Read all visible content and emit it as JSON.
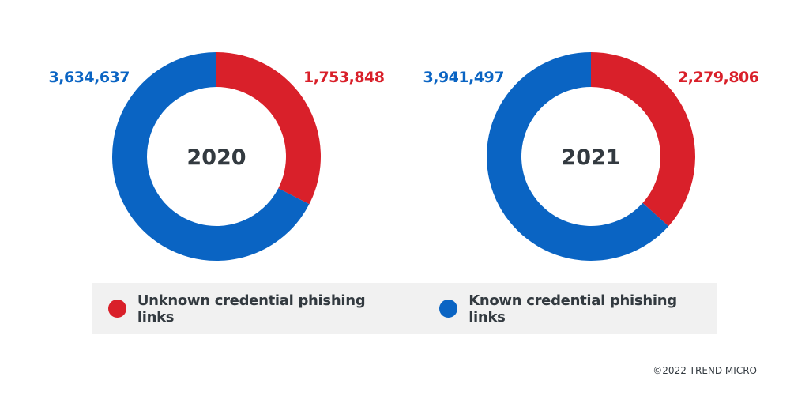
{
  "chart_data": [
    {
      "type": "pie",
      "donut": true,
      "center_label": "2020",
      "start": "top",
      "direction": "clockwise",
      "series": [
        {
          "name": "Unknown credential phishing links",
          "value": 1753848,
          "label": "1,753,848",
          "color": "#d9202a"
        },
        {
          "name": "Known credential phishing links",
          "value": 3634637,
          "label": "3,634,637",
          "color": "#0a64c3"
        }
      ]
    },
    {
      "type": "pie",
      "donut": true,
      "center_label": "2021",
      "start": "top",
      "direction": "clockwise",
      "series": [
        {
          "name": "Unknown credential phishing links",
          "value": 2279806,
          "label": "2,279,806",
          "color": "#d9202a"
        },
        {
          "name": "Known credential phishing links",
          "value": 3941497,
          "label": "3,941,497",
          "color": "#0a64c3"
        }
      ]
    }
  ],
  "legend": {
    "placement": "bottom",
    "items": [
      {
        "label": "Unknown credential phishing links",
        "color": "#d9202a"
      },
      {
        "label": "Known credential phishing links",
        "color": "#0a64c3"
      }
    ]
  },
  "footer": {
    "copyright": "©2022 TREND MICRO"
  }
}
